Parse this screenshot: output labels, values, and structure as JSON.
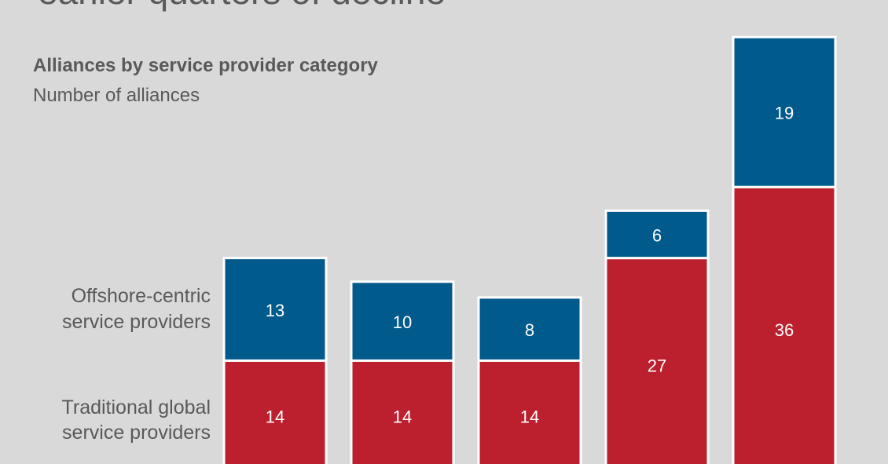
{
  "page": {
    "title": "earlier quarters of decline"
  },
  "chart_data": {
    "type": "bar",
    "stacked": true,
    "title": "Alliances by service provider category",
    "subtitle": "Number of alliances",
    "categories": [
      "",
      "",
      "",
      "",
      ""
    ],
    "series": [
      {
        "name": "Traditional global service providers",
        "values": [
          14,
          14,
          14,
          27,
          36
        ],
        "color": "#bc1f2e"
      },
      {
        "name": "Offshore-centric service providers",
        "values": [
          13,
          10,
          8,
          6,
          19
        ],
        "color": "#005a8c"
      }
    ],
    "series_labels": [
      [
        "Traditional global",
        "service providers"
      ],
      [
        "Offshore-centric",
        "service providers"
      ]
    ],
    "label_color": "#ffffff",
    "ylim": [
      0,
      55
    ]
  }
}
